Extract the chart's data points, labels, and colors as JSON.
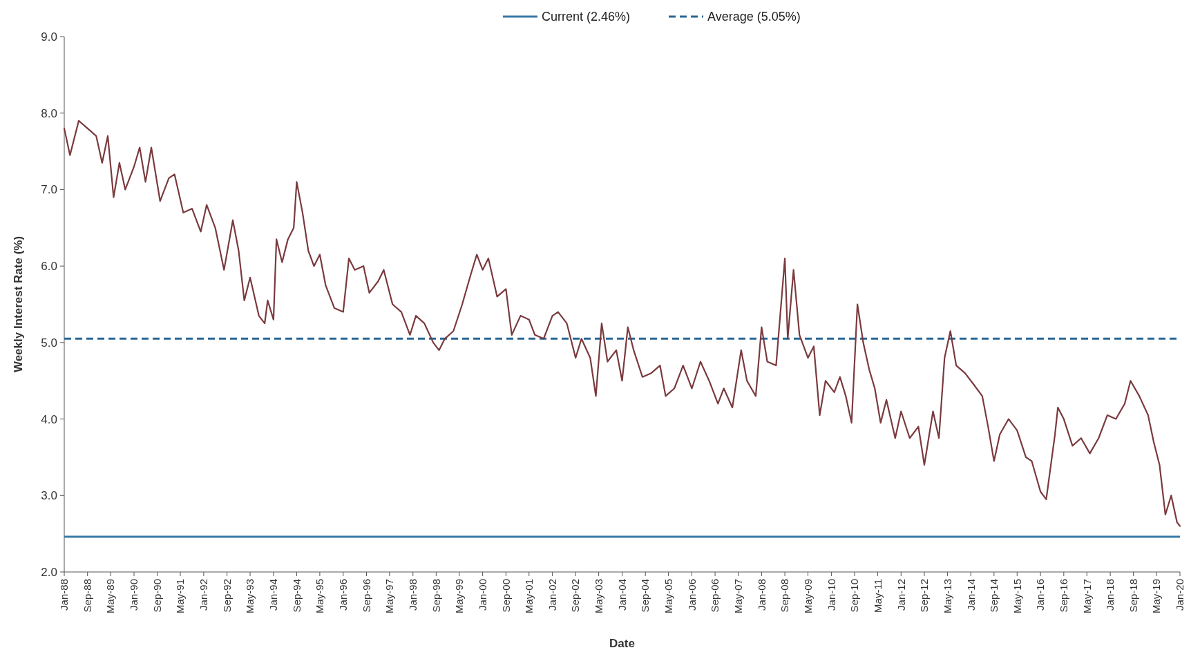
{
  "chart_data": {
    "type": "line",
    "xlabel": "Date",
    "ylabel": "Weekly Interest Rate (%)",
    "legend": "top",
    "grid": false,
    "line_style": "solid",
    "x": [
      "1988-01",
      "1988-03",
      "1988-06",
      "1988-09",
      "1988-12",
      "1989-02",
      "1989-04",
      "1989-06",
      "1989-08",
      "1989-10",
      "1990-01",
      "1990-03",
      "1990-05",
      "1990-07",
      "1990-10",
      "1991-01",
      "1991-03",
      "1991-06",
      "1991-09",
      "1991-12",
      "1992-02",
      "1992-05",
      "1992-08",
      "1992-11",
      "1993-01",
      "1993-03",
      "1993-05",
      "1993-08",
      "1993-10",
      "1993-11",
      "1994-01",
      "1994-02",
      "1994-04",
      "1994-06",
      "1994-08",
      "1994-09",
      "1994-11",
      "1995-01",
      "1995-03",
      "1995-05",
      "1995-07",
      "1995-10",
      "1996-01",
      "1996-03",
      "1996-05",
      "1996-08",
      "1996-10",
      "1997-01",
      "1997-03",
      "1997-06",
      "1997-09",
      "1997-12",
      "1998-02",
      "1998-05",
      "1998-08",
      "1998-10",
      "1998-12",
      "1999-03",
      "1999-06",
      "1999-09",
      "1999-11",
      "2000-01",
      "2000-03",
      "2000-06",
      "2000-09",
      "2000-11",
      "2001-02",
      "2001-05",
      "2001-07",
      "2001-10",
      "2002-01",
      "2002-03",
      "2002-06",
      "2002-09",
      "2002-11",
      "2003-02",
      "2003-04",
      "2003-06",
      "2003-08",
      "2003-11",
      "2004-01",
      "2004-03",
      "2004-05",
      "2004-08",
      "2004-11",
      "2005-02",
      "2005-04",
      "2005-07",
      "2005-10",
      "2006-01",
      "2006-04",
      "2006-07",
      "2006-10",
      "2006-12",
      "2007-03",
      "2007-06",
      "2007-08",
      "2007-11",
      "2008-01",
      "2008-03",
      "2008-06",
      "2008-09",
      "2008-10",
      "2008-12",
      "2009-02",
      "2009-05",
      "2009-07",
      "2009-09",
      "2009-11",
      "2010-02",
      "2010-04",
      "2010-06",
      "2010-08",
      "2010-10",
      "2010-12",
      "2011-02",
      "2011-04",
      "2011-06",
      "2011-08",
      "2011-11",
      "2012-01",
      "2012-04",
      "2012-07",
      "2012-09",
      "2012-12",
      "2013-02",
      "2013-04",
      "2013-06",
      "2013-08",
      "2013-11",
      "2014-02",
      "2014-05",
      "2014-07",
      "2014-09",
      "2014-11",
      "2015-02",
      "2015-05",
      "2015-08",
      "2015-10",
      "2016-01",
      "2016-03",
      "2016-06",
      "2016-07",
      "2016-09",
      "2016-12",
      "2017-03",
      "2017-06",
      "2017-09",
      "2017-12",
      "2018-03",
      "2018-06",
      "2018-08",
      "2018-11",
      "2019-02",
      "2019-04",
      "2019-06",
      "2019-08",
      "2019-10",
      "2019-12",
      "2020-01"
    ],
    "series": [
      {
        "color": "#7a3a3e",
        "values": [
          7.8,
          7.45,
          7.9,
          7.8,
          7.7,
          7.35,
          7.7,
          6.9,
          7.35,
          7.0,
          7.3,
          7.55,
          7.1,
          7.55,
          6.85,
          7.15,
          7.2,
          6.7,
          6.75,
          6.45,
          6.8,
          6.5,
          5.95,
          6.6,
          6.2,
          5.55,
          5.85,
          5.35,
          5.25,
          5.55,
          5.3,
          6.35,
          6.05,
          6.35,
          6.5,
          7.1,
          6.7,
          6.2,
          6.0,
          6.15,
          5.75,
          5.45,
          5.4,
          6.1,
          5.95,
          6.0,
          5.65,
          5.8,
          5.95,
          5.5,
          5.4,
          5.1,
          5.35,
          5.25,
          5.0,
          4.9,
          5.05,
          5.15,
          5.5,
          5.9,
          6.15,
          5.95,
          6.1,
          5.6,
          5.7,
          5.1,
          5.35,
          5.3,
          5.1,
          5.05,
          5.35,
          5.4,
          5.25,
          4.8,
          5.05,
          4.8,
          4.3,
          5.25,
          4.75,
          4.9,
          4.5,
          5.2,
          4.9,
          4.55,
          4.6,
          4.7,
          4.3,
          4.4,
          4.7,
          4.4,
          4.75,
          4.5,
          4.2,
          4.4,
          4.15,
          4.9,
          4.5,
          4.3,
          5.2,
          4.75,
          4.7,
          6.1,
          5.05,
          5.95,
          5.1,
          4.8,
          4.95,
          4.05,
          4.5,
          4.35,
          4.55,
          4.3,
          3.95,
          5.5,
          5.0,
          4.65,
          4.4,
          3.95,
          4.25,
          3.75,
          4.1,
          3.75,
          3.9,
          3.4,
          4.1,
          3.75,
          4.8,
          5.15,
          4.7,
          4.6,
          4.45,
          4.3,
          3.9,
          3.45,
          3.8,
          4.0,
          3.85,
          3.5,
          3.45,
          3.05,
          2.95,
          3.8,
          4.15,
          4.0,
          3.65,
          3.75,
          3.55,
          3.75,
          4.05,
          4.0,
          4.2,
          4.5,
          4.3,
          4.05,
          3.7,
          3.4,
          2.75,
          3.0,
          2.65,
          2.6
        ]
      }
    ],
    "ref_lines": [
      {
        "axis": "y",
        "value": 2.46,
        "label": "Current (2.46%)",
        "color": "#3a7aa8",
        "line_style": "solid"
      },
      {
        "axis": "y",
        "value": 5.05,
        "label": "Average (5.05%)",
        "color": "#2a6796",
        "line_style": "dashed"
      }
    ],
    "xlim": [
      "1988-01",
      "2020-01"
    ],
    "xticks": [
      {
        "value": "1988-01",
        "label": "Jan-88"
      },
      {
        "value": "1988-09",
        "label": "Sep-88"
      },
      {
        "value": "1989-05",
        "label": "May-89"
      },
      {
        "value": "1990-01",
        "label": "Jan-90"
      },
      {
        "value": "1990-09",
        "label": "Sep-90"
      },
      {
        "value": "1991-05",
        "label": "May-91"
      },
      {
        "value": "1992-01",
        "label": "Jan-92"
      },
      {
        "value": "1992-09",
        "label": "Sep-92"
      },
      {
        "value": "1993-05",
        "label": "May-93"
      },
      {
        "value": "1994-01",
        "label": "Jan-94"
      },
      {
        "value": "1994-09",
        "label": "Sep-94"
      },
      {
        "value": "1995-05",
        "label": "May-95"
      },
      {
        "value": "1996-01",
        "label": "Jan-96"
      },
      {
        "value": "1996-09",
        "label": "Sep-96"
      },
      {
        "value": "1997-05",
        "label": "May-97"
      },
      {
        "value": "1998-01",
        "label": "Jan-98"
      },
      {
        "value": "1998-09",
        "label": "Sep-98"
      },
      {
        "value": "1999-05",
        "label": "May-99"
      },
      {
        "value": "2000-01",
        "label": "Jan-00"
      },
      {
        "value": "2000-09",
        "label": "Sep-00"
      },
      {
        "value": "2001-05",
        "label": "May-01"
      },
      {
        "value": "2002-01",
        "label": "Jan-02"
      },
      {
        "value": "2002-09",
        "label": "Sep-02"
      },
      {
        "value": "2003-05",
        "label": "May-03"
      },
      {
        "value": "2004-01",
        "label": "Jan-04"
      },
      {
        "value": "2004-09",
        "label": "Sep-04"
      },
      {
        "value": "2005-05",
        "label": "May-05"
      },
      {
        "value": "2006-01",
        "label": "Jan-06"
      },
      {
        "value": "2006-09",
        "label": "Sep-06"
      },
      {
        "value": "2007-05",
        "label": "May-07"
      },
      {
        "value": "2008-01",
        "label": "Jan-08"
      },
      {
        "value": "2008-09",
        "label": "Sep-08"
      },
      {
        "value": "2009-05",
        "label": "May-09"
      },
      {
        "value": "2010-01",
        "label": "Jan-10"
      },
      {
        "value": "2010-09",
        "label": "Sep-10"
      },
      {
        "value": "2011-05",
        "label": "May-11"
      },
      {
        "value": "2012-01",
        "label": "Jan-12"
      },
      {
        "value": "2012-09",
        "label": "Sep-12"
      },
      {
        "value": "2013-05",
        "label": "May-13"
      },
      {
        "value": "2014-01",
        "label": "Jan-14"
      },
      {
        "value": "2014-09",
        "label": "Sep-14"
      },
      {
        "value": "2015-05",
        "label": "May-15"
      },
      {
        "value": "2016-01",
        "label": "Jan-16"
      },
      {
        "value": "2016-09",
        "label": "Sep-16"
      },
      {
        "value": "2017-05",
        "label": "May-17"
      },
      {
        "value": "2018-01",
        "label": "Jan-18"
      },
      {
        "value": "2018-09",
        "label": "Sep-18"
      },
      {
        "value": "2019-05",
        "label": "May-19"
      },
      {
        "value": "2020-01",
        "label": "Jan-20"
      }
    ],
    "ylim": [
      2,
      9
    ],
    "yticks": [
      {
        "value": 2,
        "label": "2.0"
      },
      {
        "value": 3,
        "label": "3.0"
      },
      {
        "value": 4,
        "label": "4.0"
      },
      {
        "value": 5,
        "label": "5.0"
      },
      {
        "value": 6,
        "label": "6.0"
      },
      {
        "value": 7,
        "label": "7.0"
      },
      {
        "value": 8,
        "label": "8.0"
      },
      {
        "value": 9,
        "label": "9.0"
      }
    ]
  }
}
